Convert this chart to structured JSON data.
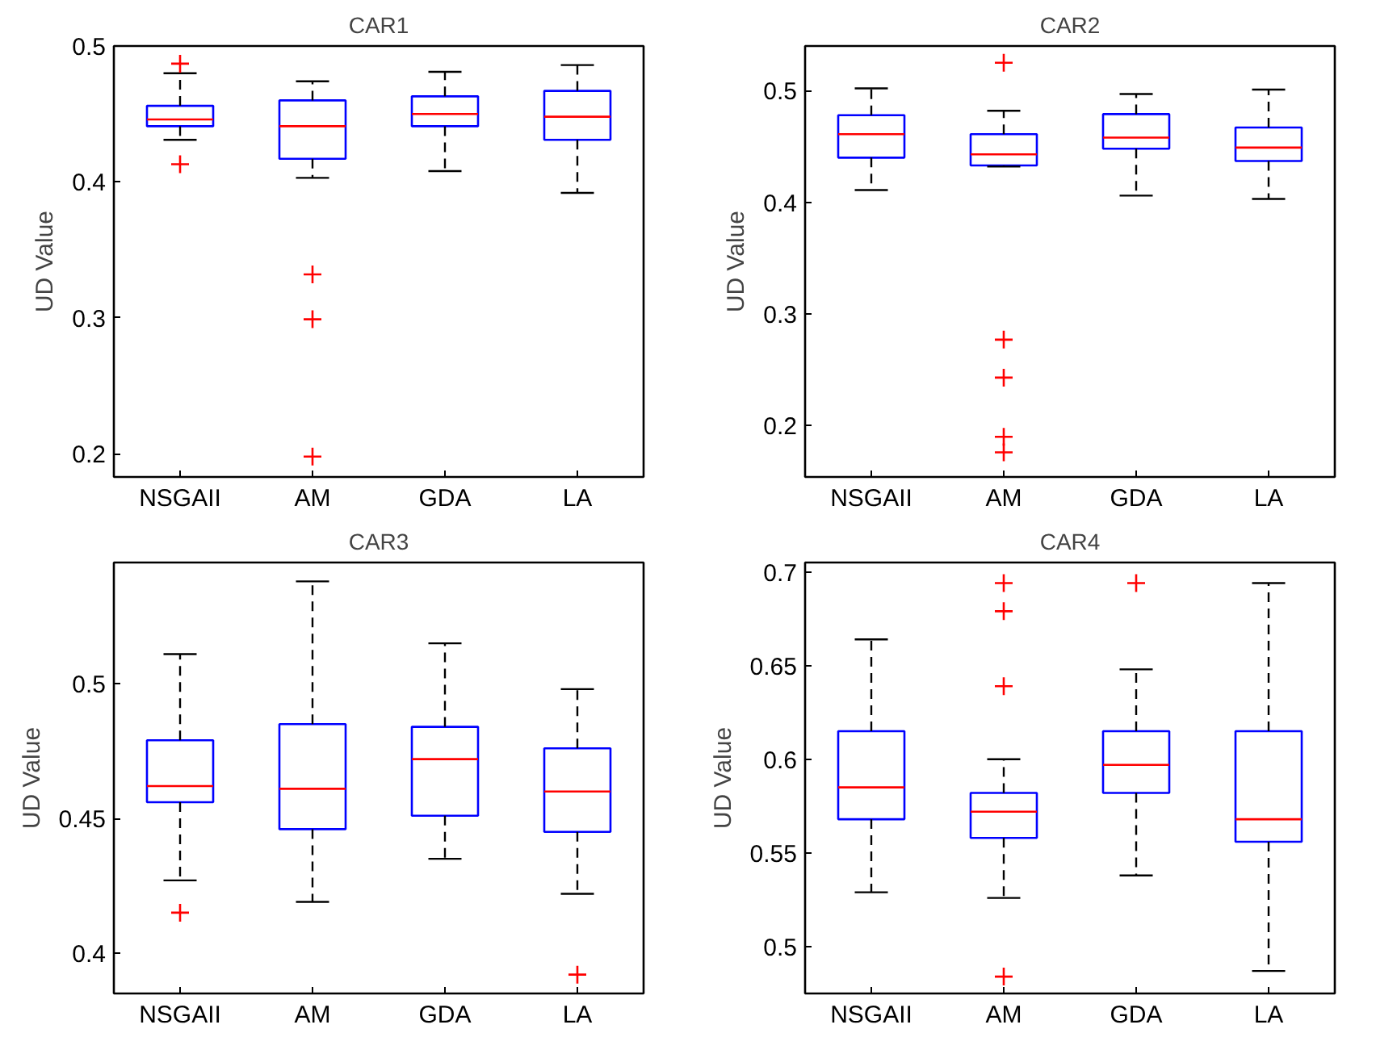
{
  "chart_data": [
    {
      "type": "box",
      "title": "CAR1",
      "ylabel": "UD Value",
      "categories": [
        "NSGAII",
        "AM",
        "GDA",
        "LA"
      ],
      "ylim": [
        0.183,
        0.5
      ],
      "yticks": [
        0.2,
        0.3,
        0.4,
        0.5
      ],
      "boxes": [
        {
          "low": 0.431,
          "q1": 0.441,
          "median": 0.446,
          "q3": 0.456,
          "high": 0.48,
          "outliers": [
            0.487,
            0.413
          ]
        },
        {
          "low": 0.403,
          "q1": 0.417,
          "median": 0.441,
          "q3": 0.46,
          "high": 0.474,
          "outliers": [
            0.332,
            0.299,
            0.198
          ]
        },
        {
          "low": 0.408,
          "q1": 0.441,
          "median": 0.45,
          "q3": 0.463,
          "high": 0.481
        },
        {
          "low": 0.392,
          "q1": 0.431,
          "median": 0.448,
          "q3": 0.467,
          "high": 0.486
        }
      ]
    },
    {
      "type": "box",
      "title": "CAR2",
      "ylabel": "UD Value",
      "categories": [
        "NSGAII",
        "AM",
        "GDA",
        "LA"
      ],
      "ylim": [
        0.154,
        0.54
      ],
      "yticks": [
        0.2,
        0.3,
        0.4,
        0.5
      ],
      "boxes": [
        {
          "low": 0.411,
          "q1": 0.44,
          "median": 0.461,
          "q3": 0.478,
          "high": 0.502
        },
        {
          "low": 0.432,
          "q1": 0.433,
          "median": 0.443,
          "q3": 0.461,
          "high": 0.482,
          "outliers": [
            0.525,
            0.277,
            0.243,
            0.19,
            0.176
          ]
        },
        {
          "low": 0.406,
          "q1": 0.448,
          "median": 0.458,
          "q3": 0.479,
          "high": 0.497
        },
        {
          "low": 0.403,
          "q1": 0.437,
          "median": 0.449,
          "q3": 0.467,
          "high": 0.501
        }
      ]
    },
    {
      "type": "box",
      "title": "CAR3",
      "ylabel": "UD Value",
      "categories": [
        "NSGAII",
        "AM",
        "GDA",
        "LA"
      ],
      "ylim": [
        0.385,
        0.545
      ],
      "yticks": [
        0.4,
        0.45,
        0.5
      ],
      "boxes": [
        {
          "low": 0.427,
          "q1": 0.456,
          "median": 0.462,
          "q3": 0.479,
          "high": 0.511,
          "outliers": [
            0.415
          ]
        },
        {
          "low": 0.419,
          "q1": 0.446,
          "median": 0.461,
          "q3": 0.485,
          "high": 0.538
        },
        {
          "low": 0.435,
          "q1": 0.451,
          "median": 0.472,
          "q3": 0.484,
          "high": 0.515
        },
        {
          "low": 0.422,
          "q1": 0.445,
          "median": 0.46,
          "q3": 0.476,
          "high": 0.498,
          "outliers": [
            0.392
          ]
        }
      ]
    },
    {
      "type": "box",
      "title": "CAR4",
      "ylabel": "UD Value",
      "categories": [
        "NSGAII",
        "AM",
        "GDA",
        "LA"
      ],
      "ylim": [
        0.475,
        0.705
      ],
      "yticks": [
        0.5,
        0.55,
        0.6,
        0.65,
        0.7
      ],
      "boxes": [
        {
          "low": 0.529,
          "q1": 0.568,
          "median": 0.585,
          "q3": 0.615,
          "high": 0.664
        },
        {
          "low": 0.526,
          "q1": 0.558,
          "median": 0.572,
          "q3": 0.582,
          "high": 0.6,
          "outliers": [
            0.694,
            0.679,
            0.639,
            0.484
          ]
        },
        {
          "low": 0.538,
          "q1": 0.582,
          "median": 0.597,
          "q3": 0.615,
          "high": 0.648,
          "outliers": [
            0.694
          ]
        },
        {
          "low": 0.487,
          "q1": 0.556,
          "median": 0.568,
          "q3": 0.615,
          "high": 0.694
        }
      ]
    }
  ]
}
